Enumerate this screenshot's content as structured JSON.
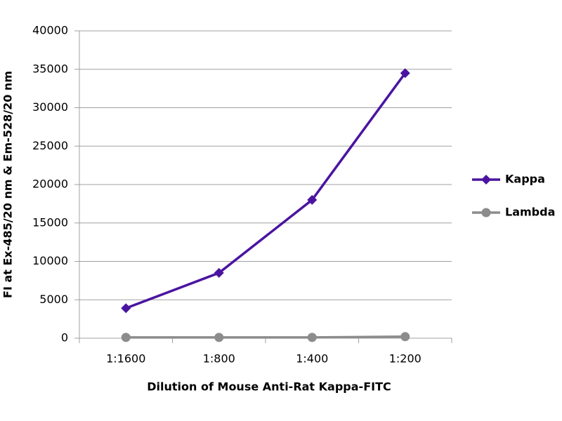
{
  "chart_data": {
    "type": "line",
    "x_label": "Dilution of Mouse Anti-Rat Kappa-FITC",
    "y_label": "FI at Ex-485/20 nm & Em-528/20 nm",
    "categories": [
      "1:1600",
      "1:800",
      "1:400",
      "1:200"
    ],
    "series": [
      {
        "name": "Kappa",
        "color": "#4a14a0",
        "marker": "diamond",
        "values": [
          3900,
          8500,
          18000,
          34500
        ]
      },
      {
        "name": "Lambda",
        "color": "#8c8c8c",
        "marker": "circle",
        "values": [
          100,
          100,
          100,
          200
        ]
      }
    ],
    "ylim": [
      0,
      40000
    ],
    "yticks": [
      0,
      5000,
      10000,
      15000,
      20000,
      25000,
      30000,
      35000,
      40000
    ],
    "grid": true,
    "legend": "right"
  }
}
